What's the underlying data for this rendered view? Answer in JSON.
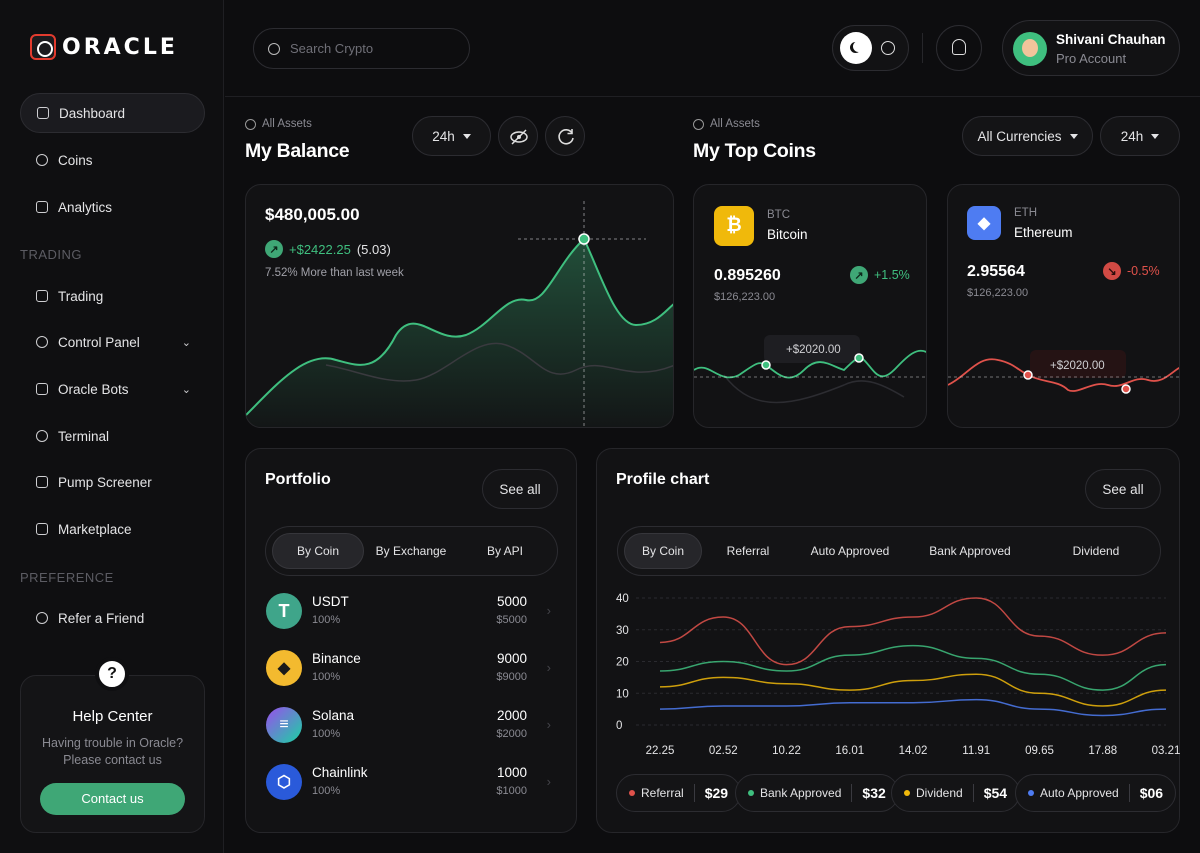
{
  "brand": {
    "name": "ORACLE"
  },
  "sidebar": {
    "items": [
      {
        "label": "Dashboard",
        "icon": "grid-icon"
      },
      {
        "label": "Coins",
        "icon": "coins-icon"
      },
      {
        "label": "Analytics",
        "icon": "analytics-icon"
      },
      {
        "label": "Trading",
        "icon": "candles-icon"
      },
      {
        "label": "Control Panel",
        "icon": "gauge-icon"
      },
      {
        "label": "Oracle Bots",
        "icon": "bot-icon"
      },
      {
        "label": "Terminal",
        "icon": "terminal-icon"
      },
      {
        "label": "Pump Screener",
        "icon": "screen-icon"
      },
      {
        "label": "Marketplace",
        "icon": "cart-icon"
      },
      {
        "label": "Refer a Friend",
        "icon": "users-icon"
      }
    ],
    "sections": {
      "trading": "TRADING",
      "preference": "PREFERENCE"
    }
  },
  "help": {
    "title": "Help Center",
    "text_line1": "Having trouble in Oracle?",
    "text_line2": "Please contact us",
    "button": "Contact us"
  },
  "header": {
    "search_placeholder": "Search Crypto",
    "user_name": "Shivani Chauhan",
    "user_plan": "Pro Account"
  },
  "balance": {
    "label": "All Assets",
    "title": "My Balance",
    "period": "24h",
    "value": "$480,005.00",
    "change": "+$2422.25",
    "change_pct": "(5.03)",
    "note": "7.52% More than last week",
    "accent": "#3fbf7f"
  },
  "top_coins": {
    "label": "All Assets",
    "title": "My Top Coins",
    "currency_filter": "All Currencies",
    "period": "24h",
    "coins": [
      {
        "ticker": "BTC",
        "name": "Bitcoin",
        "amount": "0.895260",
        "fiat": "$126,223.00",
        "change": "+1.5%",
        "tooltip": "+$2020.00",
        "color": "#f0b90b"
      },
      {
        "ticker": "ETH",
        "name": "Ethereum",
        "amount": "2.95564",
        "fiat": "$126,223.00",
        "change": "-0.5%",
        "tooltip": "+$2020.00",
        "color": "#4e7cf2"
      }
    ]
  },
  "portfolio": {
    "title": "Portfolio",
    "see_all": "See all",
    "tabs": [
      "By Coin",
      "By Exchange",
      "By API"
    ],
    "rows": [
      {
        "name": "USDT",
        "pct": "100%",
        "value": "5000",
        "fiat": "$5000",
        "icon": "tether-icon",
        "color": "#3fa58a"
      },
      {
        "name": "Binance",
        "pct": "100%",
        "value": "9000",
        "fiat": "$9000",
        "icon": "binance-icon",
        "color": "#f3ba2f"
      },
      {
        "name": "Solana",
        "pct": "100%",
        "value": "2000",
        "fiat": "$2000",
        "icon": "solana-icon",
        "color": "#9b4dee"
      },
      {
        "name": "Chainlink",
        "pct": "100%",
        "value": "1000",
        "fiat": "$1000",
        "icon": "chainlink-icon",
        "color": "#2a5ada"
      }
    ]
  },
  "profile_chart": {
    "title": "Profile chart",
    "see_all": "See all",
    "tabs": [
      "By Coin",
      "Referral",
      "Auto Approved",
      "Bank Approved",
      "Dividend"
    ],
    "legend": [
      {
        "name": "Referral",
        "value": "$29",
        "color": "#e0524b"
      },
      {
        "name": "Bank Approved",
        "value": "$32",
        "color": "#3fbf7f"
      },
      {
        "name": "Dividend",
        "value": "$54",
        "color": "#f0b90b"
      },
      {
        "name": "Auto Approved",
        "value": "$06",
        "color": "#4e7cf2"
      }
    ]
  },
  "chart_data": {
    "type": "line",
    "x": [
      "22.25",
      "02.52",
      "10.22",
      "16.01",
      "14.02",
      "11.91",
      "09.65",
      "17.88",
      "03.21"
    ],
    "yticks": [
      40,
      30,
      20,
      10,
      0
    ],
    "ylim": [
      0,
      40
    ],
    "series": [
      {
        "name": "Referral",
        "values": [
          26,
          34,
          19,
          31,
          34,
          40,
          28,
          22,
          29
        ],
        "color": "#e0524b"
      },
      {
        "name": "Bank Approved",
        "values": [
          17,
          20,
          17,
          22,
          25,
          21,
          16,
          11,
          19
        ],
        "color": "#3fbf7f"
      },
      {
        "name": "Dividend",
        "values": [
          12,
          15,
          13,
          11,
          14,
          16,
          10,
          6,
          11
        ],
        "color": "#f0b90b"
      },
      {
        "name": "Auto Approved",
        "values": [
          5,
          6,
          6,
          7,
          7,
          8,
          5,
          3,
          5
        ],
        "color": "#4e7cf2"
      }
    ]
  }
}
